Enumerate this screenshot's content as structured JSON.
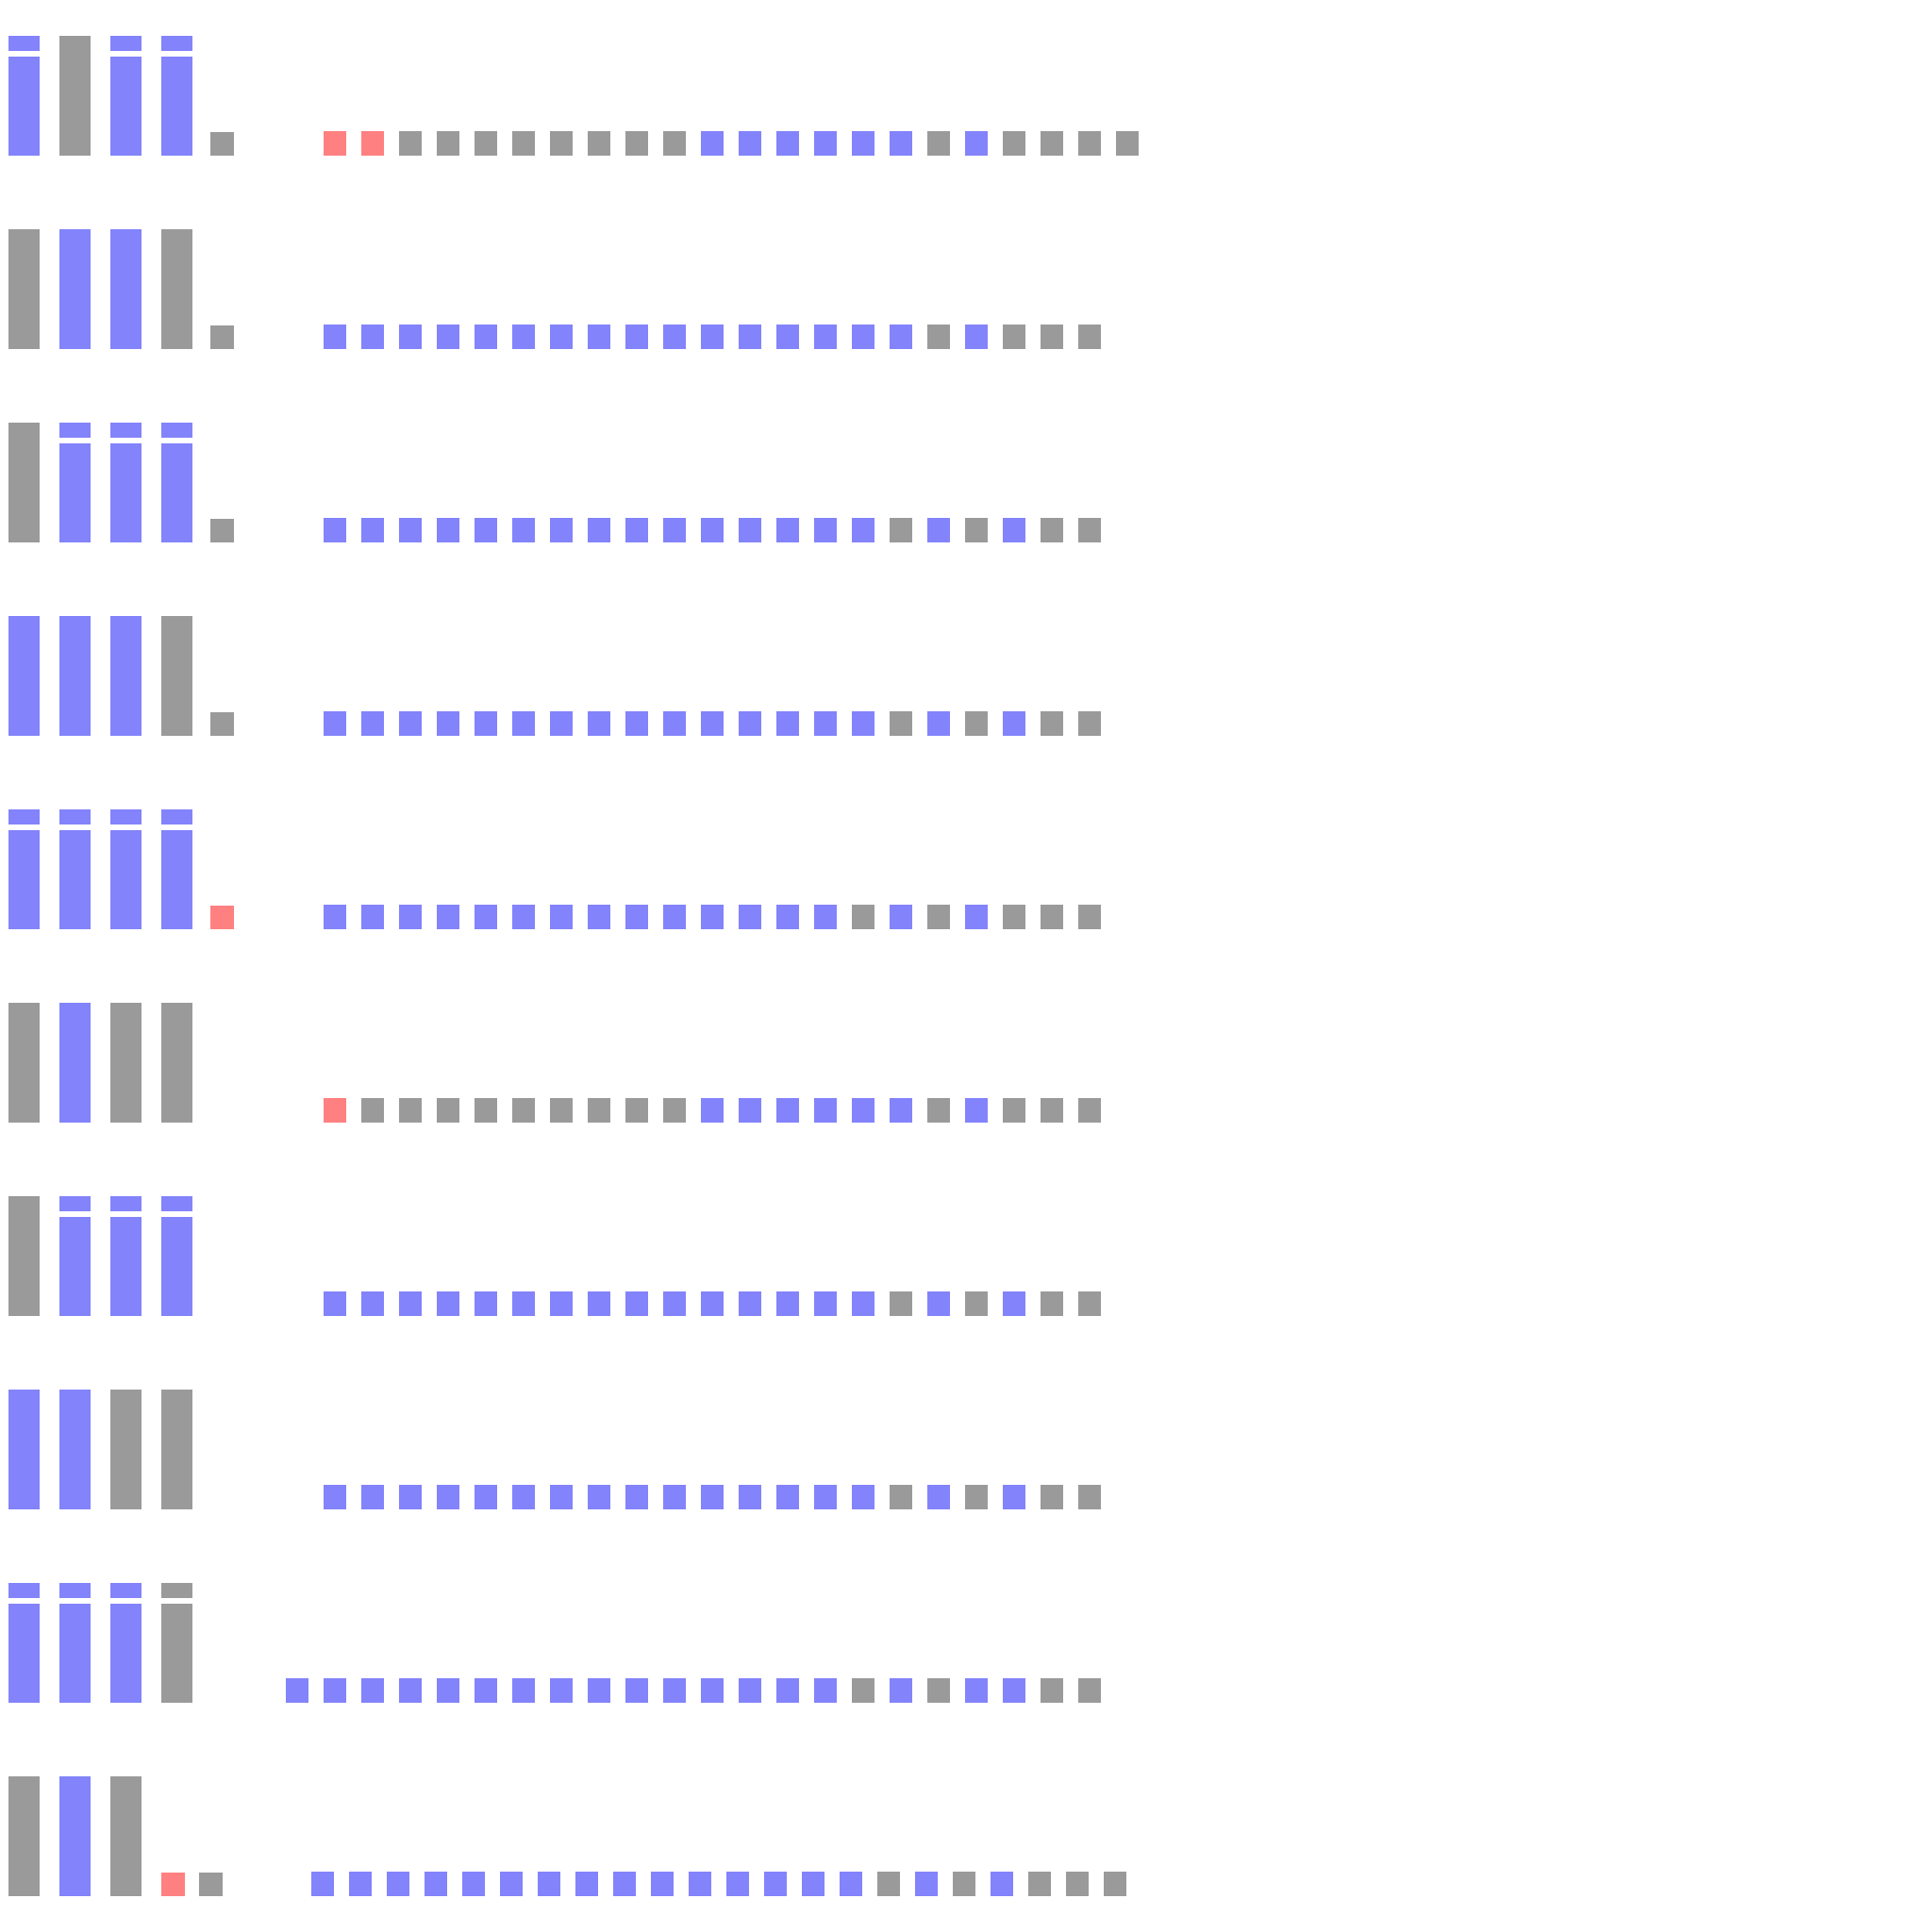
{
  "colors": {
    "blue": "#8383fb",
    "gray": "#9a9a9a",
    "red": "#ff8080"
  },
  "rows": [
    {
      "glyphs": [
        "blue-dotted",
        "gray-bar",
        "blue-dotted",
        "blue-dotted",
        "gray-period"
      ],
      "dot_offset": 0,
      "dots": [
        "red",
        "red",
        "gray",
        "gray",
        "gray",
        "gray",
        "gray",
        "gray",
        "gray",
        "gray",
        "blue",
        "blue",
        "blue",
        "blue",
        "blue",
        "blue",
        "gray",
        "blue",
        "gray",
        "gray",
        "gray",
        "gray"
      ]
    },
    {
      "glyphs": [
        "gray-bar",
        "blue-bar",
        "blue-bar",
        "gray-bar",
        "gray-period"
      ],
      "dot_offset": 0,
      "dots": [
        "blue",
        "blue",
        "blue",
        "blue",
        "blue",
        "blue",
        "blue",
        "blue",
        "blue",
        "blue",
        "blue",
        "blue",
        "blue",
        "blue",
        "blue",
        "blue",
        "gray",
        "blue",
        "gray",
        "gray",
        "gray"
      ]
    },
    {
      "glyphs": [
        "gray-bar",
        "blue-dotted",
        "blue-dotted",
        "blue-dotted",
        "gray-period"
      ],
      "dot_offset": 0,
      "dots": [
        "blue",
        "blue",
        "blue",
        "blue",
        "blue",
        "blue",
        "blue",
        "blue",
        "blue",
        "blue",
        "blue",
        "blue",
        "blue",
        "blue",
        "blue",
        "gray",
        "blue",
        "gray",
        "blue",
        "gray",
        "gray"
      ]
    },
    {
      "glyphs": [
        "blue-bar",
        "blue-bar",
        "blue-bar",
        "gray-bar",
        "gray-period"
      ],
      "dot_offset": 0,
      "dots": [
        "blue",
        "blue",
        "blue",
        "blue",
        "blue",
        "blue",
        "blue",
        "blue",
        "blue",
        "blue",
        "blue",
        "blue",
        "blue",
        "blue",
        "blue",
        "gray",
        "blue",
        "gray",
        "blue",
        "gray",
        "gray"
      ]
    },
    {
      "glyphs": [
        "blue-dotted",
        "blue-dotted",
        "blue-dotted",
        "blue-dotted",
        "red-period"
      ],
      "dot_offset": 0,
      "dots": [
        "blue",
        "blue",
        "blue",
        "blue",
        "blue",
        "blue",
        "blue",
        "blue",
        "blue",
        "blue",
        "blue",
        "blue",
        "blue",
        "blue",
        "gray",
        "blue",
        "gray",
        "blue",
        "gray",
        "gray",
        "gray"
      ]
    },
    {
      "glyphs": [
        "gray-bar",
        "blue-bar",
        "gray-bar",
        "gray-bar"
      ],
      "dot_offset": 0,
      "dots": [
        "red",
        "gray",
        "gray",
        "gray",
        "gray",
        "gray",
        "gray",
        "gray",
        "gray",
        "gray",
        "blue",
        "blue",
        "blue",
        "blue",
        "blue",
        "blue",
        "gray",
        "blue",
        "gray",
        "gray",
        "gray"
      ]
    },
    {
      "glyphs": [
        "gray-bar",
        "blue-dotted",
        "blue-dotted",
        "blue-dotted"
      ],
      "dot_offset": 0,
      "dots": [
        "blue",
        "blue",
        "blue",
        "blue",
        "blue",
        "blue",
        "blue",
        "blue",
        "blue",
        "blue",
        "blue",
        "blue",
        "blue",
        "blue",
        "blue",
        "gray",
        "blue",
        "gray",
        "blue",
        "gray",
        "gray"
      ]
    },
    {
      "glyphs": [
        "blue-bar",
        "blue-bar",
        "gray-bar",
        "gray-bar"
      ],
      "dot_offset": 0,
      "dots": [
        "blue",
        "blue",
        "blue",
        "blue",
        "blue",
        "blue",
        "blue",
        "blue",
        "blue",
        "blue",
        "blue",
        "blue",
        "blue",
        "blue",
        "blue",
        "gray",
        "blue",
        "gray",
        "blue",
        "gray",
        "gray"
      ]
    },
    {
      "glyphs": [
        "blue-dotted",
        "blue-dotted",
        "blue-dotted",
        "gray-dotted"
      ],
      "dot_offset": -1,
      "dots": [
        "blue",
        "blue",
        "blue",
        "blue",
        "blue",
        "blue",
        "blue",
        "blue",
        "blue",
        "blue",
        "blue",
        "blue",
        "blue",
        "blue",
        "blue",
        "gray",
        "blue",
        "gray",
        "blue",
        "blue",
        "gray",
        "gray"
      ]
    },
    {
      "glyphs": [
        "gray-bar",
        "blue-bar",
        "gray-bar",
        "red-period",
        "gray-period"
      ],
      "dot_offset": "shifted",
      "dots": [
        "blue",
        "blue",
        "blue",
        "blue",
        "blue",
        "blue",
        "blue",
        "blue",
        "blue",
        "blue",
        "blue",
        "blue",
        "blue",
        "blue",
        "blue",
        "gray",
        "blue",
        "gray",
        "blue",
        "gray",
        "gray",
        "gray"
      ]
    }
  ]
}
